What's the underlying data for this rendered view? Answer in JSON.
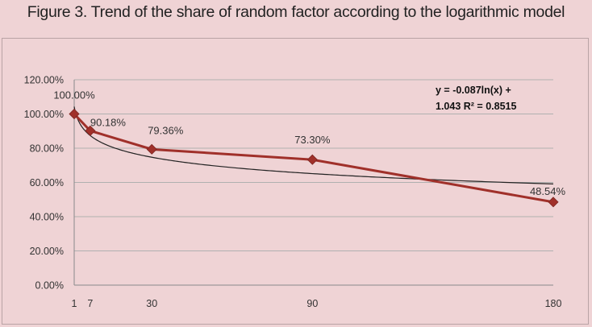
{
  "figure": {
    "title": "Figure 3. Trend of the share of random factor according to the logarithmic model"
  },
  "chart_data": {
    "type": "line",
    "x": [
      1,
      7,
      30,
      90,
      180
    ],
    "series": [
      {
        "values": [
          100.0,
          90.18,
          79.36,
          73.3,
          48.54
        ],
        "labels": [
          "100.00%",
          "90.18%",
          "79.36%",
          "73.30%",
          "48.54%"
        ],
        "color": "#a0302a"
      }
    ],
    "trendline": {
      "type": "logarithmic",
      "slope": -0.087,
      "intercept": 1.043,
      "equation_line1": "y = -0.087ln(x) +",
      "equation_line2": "1.043 R² = 0.8515",
      "color": "#222222"
    },
    "x_ticks": [
      "1",
      "7",
      "30",
      "90",
      "180"
    ],
    "y_ticks": [
      "0.00%",
      "20.00%",
      "40.00%",
      "60.00%",
      "80.00%",
      "100.00%",
      "120.00%"
    ],
    "ylim": [
      0,
      120
    ],
    "grid": true,
    "title": "",
    "xlabel": "",
    "ylabel": ""
  }
}
